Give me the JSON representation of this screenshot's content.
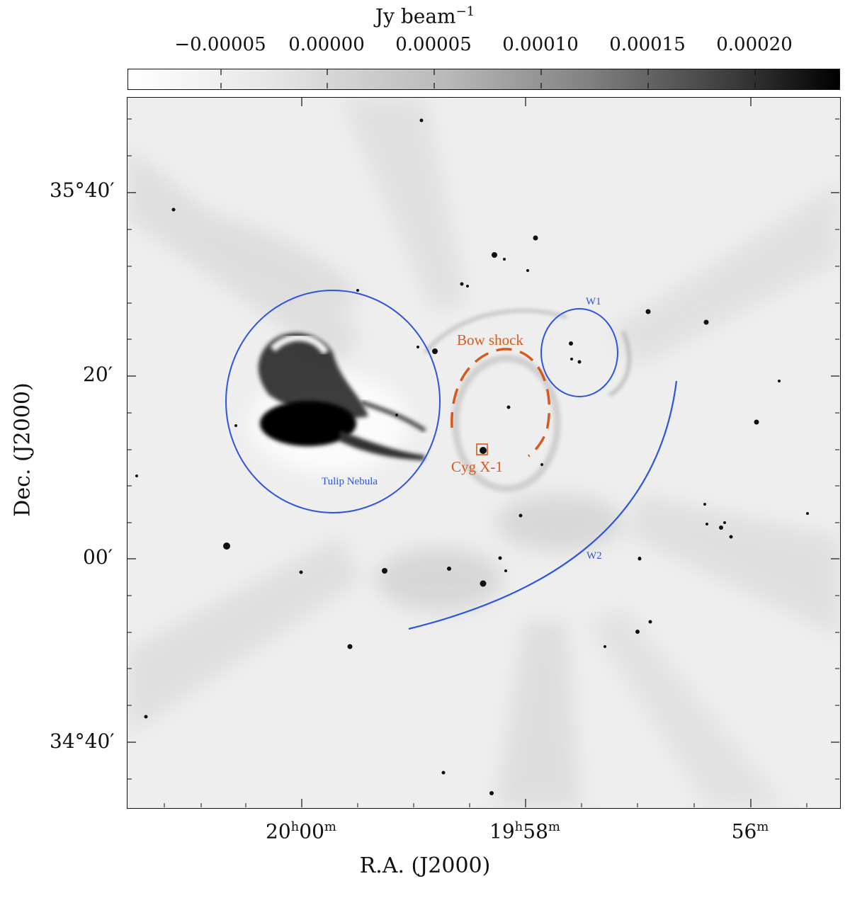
{
  "colorbar": {
    "title": "Jy beam",
    "title_exp": "−1",
    "ticks": [
      "−0.00005",
      "0.00000",
      "0.00005",
      "0.00010",
      "0.00015",
      "0.00020"
    ],
    "gradient": [
      "#ffffff",
      "#000000"
    ]
  },
  "axes": {
    "xlabel": "R.A. (J2000)",
    "ylabel": "Dec. (J2000)",
    "x_ticks": [
      {
        "main": "20",
        "sup1": "h",
        "mid": "00",
        "sup2": "m"
      },
      {
        "main": "19",
        "sup1": "h",
        "mid": "58",
        "sup2": "m"
      },
      {
        "main": "56",
        "sup1": "",
        "mid": "",
        "sup2": "m"
      }
    ],
    "y_ticks": [
      "35°40′",
      "20′",
      "00′",
      "34°40′"
    ]
  },
  "annotations": {
    "tulip": "Tulip Nebula",
    "w1": "W1",
    "w2": "W2",
    "bow_shock": "Bow shock",
    "cygx1": "Cyg X-1"
  },
  "colors": {
    "blue": "#2b55e0",
    "orange": "#d8591c",
    "background": "#eeeeee"
  }
}
